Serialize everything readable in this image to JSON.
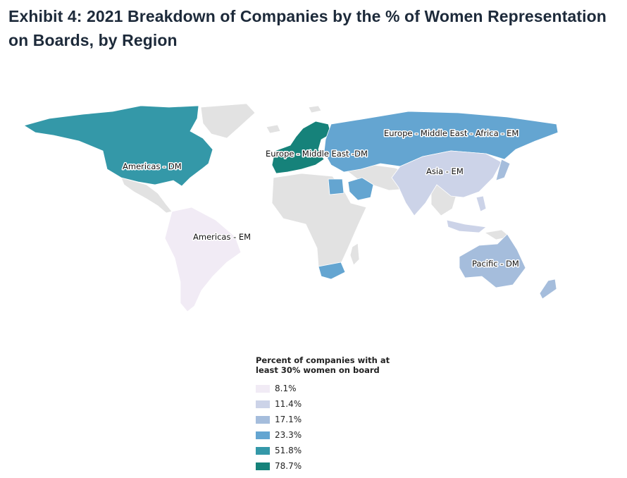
{
  "title": "Exhibit 4: 2021 Breakdown of Companies by the % of Women Representation on Boards, by Region",
  "legend": {
    "title": "Percent of companies with at least 30% women on board",
    "items": [
      {
        "label": "8.1%",
        "value": 8.1,
        "color": "#f1ebf5"
      },
      {
        "label": "11.4%",
        "value": 11.4,
        "color": "#ccd3e8"
      },
      {
        "label": "17.1%",
        "value": 17.1,
        "color": "#a5bddc"
      },
      {
        "label": "23.3%",
        "value": 23.3,
        "color": "#64a5d1"
      },
      {
        "label": "51.8%",
        "value": 51.8,
        "color": "#3498a8"
      },
      {
        "label": "78.7%",
        "value": 78.7,
        "color": "#16827a"
      }
    ]
  },
  "regions": [
    {
      "label": "Americas - DM",
      "value": 51.8,
      "color": "#3498a8"
    },
    {
      "label": "Americas - EM",
      "value": 8.1,
      "color": "#f1ebf5"
    },
    {
      "label": "Europe - Middle East -DM",
      "value": 78.7,
      "color": "#16827a"
    },
    {
      "label": "Europe - Middle East - Africa - EM",
      "value": 23.3,
      "color": "#64a5d1"
    },
    {
      "label": "Asia - EM",
      "value": 11.4,
      "color": "#ccd3e8"
    },
    {
      "label": "Pacific - DM",
      "value": 17.1,
      "color": "#a5bddc"
    }
  ],
  "colors": {
    "no_data": "#e2e2e2",
    "border": "#ffffff",
    "title": "#1d2a3a"
  }
}
